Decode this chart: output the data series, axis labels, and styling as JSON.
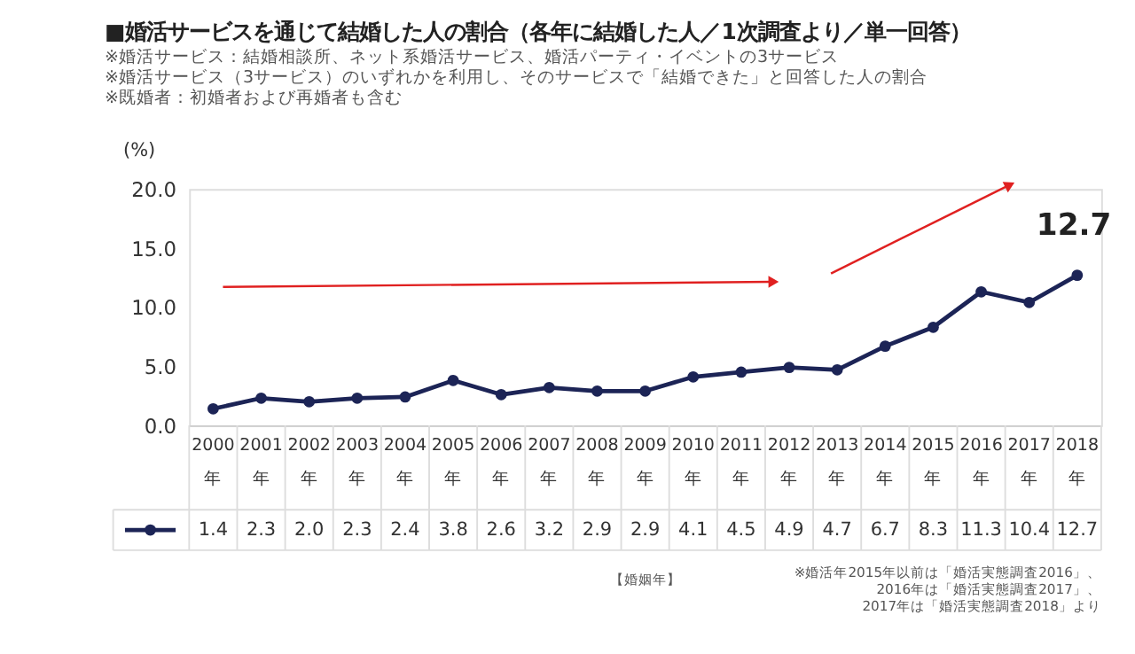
{
  "chart_data": {
    "type": "line",
    "title": "■婚活サービスを通じて結婚した人の割合（各年に結婚した人／1次調査より／単一回答）",
    "subtitle": "※婚活サービス：結婚相談所、ネット系婚活サービス、婚活パーティ・イベントの3サービス\n※婚活サービス（3サービス）のいずれかを利用し、そのサービスで「結婚できた」と回答した人の割合\n※既婚者：初婚者および再婚者も含む",
    "ylabel": "(%)",
    "categories": [
      "2000年",
      "2001年",
      "2002年",
      "2003年",
      "2004年",
      "2005年",
      "2006年",
      "2007年",
      "2008年",
      "2009年",
      "2010年",
      "2011年",
      "2012年",
      "2013年",
      "2014年",
      "2015年",
      "2016年",
      "2017年",
      "2018年"
    ],
    "series": [
      {
        "color": "#1c2456",
        "values": [
          1.4,
          2.3,
          2.0,
          2.3,
          2.4,
          3.8,
          2.6,
          3.2,
          2.9,
          2.9,
          4.1,
          4.5,
          4.9,
          4.7,
          6.7,
          8.3,
          11.3,
          10.4,
          12.7
        ]
      }
    ],
    "ylim": [
      0,
      20
    ],
    "yticks": [
      {
        "value": 0,
        "label": "0.0"
      },
      {
        "value": 5,
        "label": "5.0"
      },
      {
        "value": 10,
        "label": "10.0"
      },
      {
        "value": 15,
        "label": "15.0"
      },
      {
        "value": 20,
        "label": "20.0"
      }
    ],
    "grid": false,
    "legend": false,
    "marker": "circle",
    "line_style": "solid",
    "value_labels": [
      "1.4",
      "2.3",
      "2.0",
      "2.3",
      "2.4",
      "3.8",
      "2.6",
      "3.2",
      "2.9",
      "2.9",
      "4.1",
      "4.5",
      "4.9",
      "4.7",
      "6.7",
      "8.3",
      "11.3",
      "10.4",
      "12.7"
    ],
    "annotations": [
      "12.7",
      "【婚姻年】",
      "※婚活年2015年以前は「婚活実態調査2016」、",
      "2016年は「婚活実態調査2017」、",
      "2017年は「婚活実態調査2018」より"
    ]
  }
}
